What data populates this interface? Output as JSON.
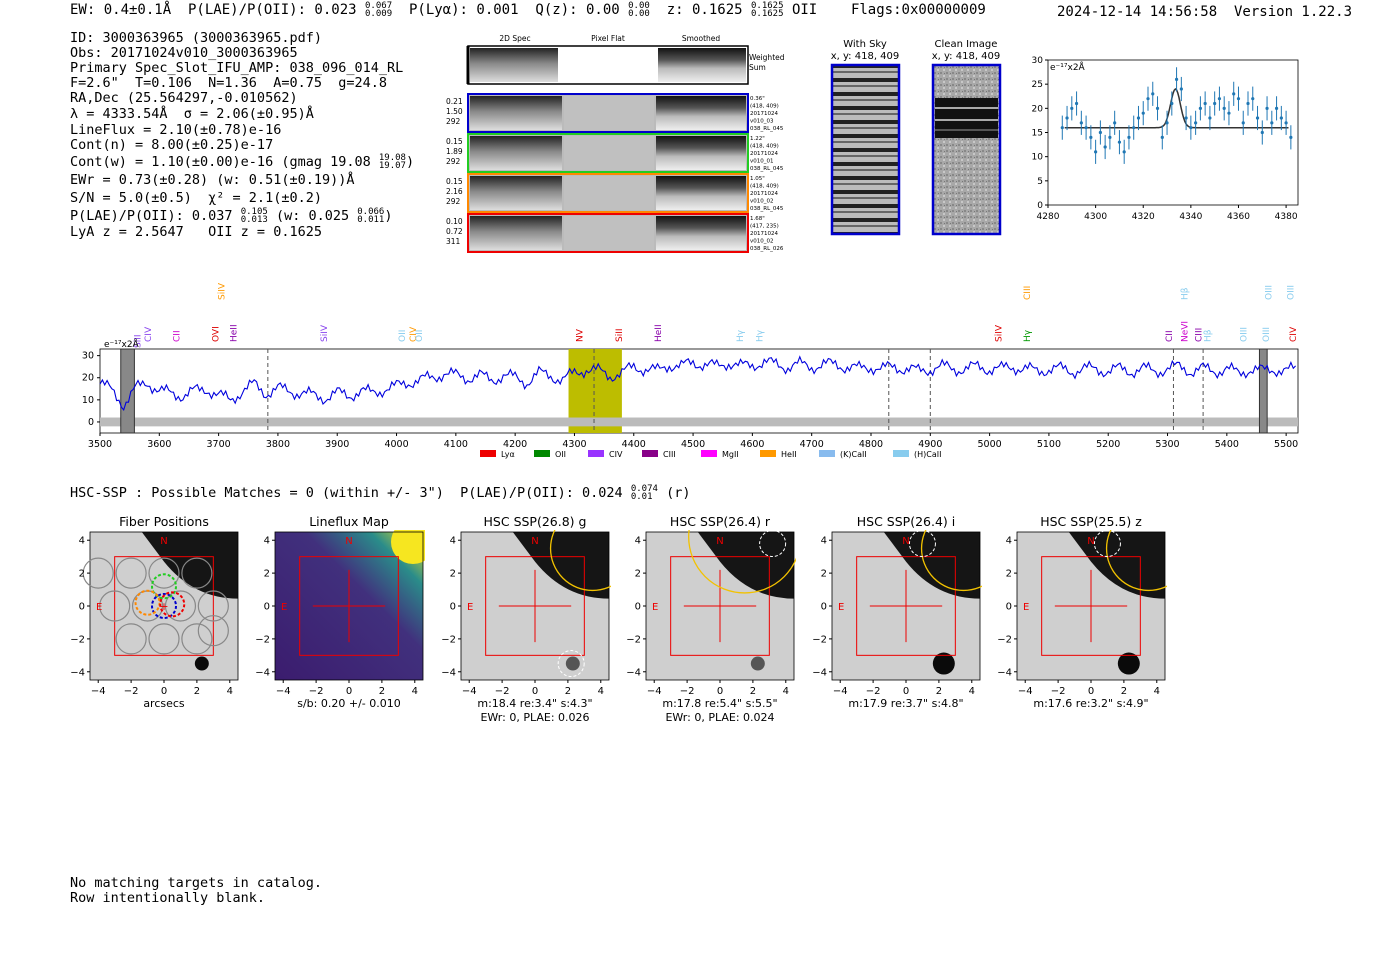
{
  "header": {
    "topline": "EW: 0.4±0.1Å  P(LAE)/P(OII): 0.023",
    "topline_sup": [
      "0.067",
      "0.009"
    ],
    "plya": "P(Lyα): 0.001",
    "qz": "Q(z): 0.00",
    "qz_sup": [
      "0.00",
      "0.00"
    ],
    "z": "z: 0.1625",
    "z_sup": [
      "0.1625",
      "0.1625"
    ],
    "z_tail": "OII    Flags:0x00000009",
    "stamp": "2024-12-14 14:56:58  Version 1.22.3"
  },
  "info": {
    "lines": [
      "ID: 3000363965 (3000363965.pdf)",
      "Obs: 20171024v010_3000363965",
      "Primary Spec_Slot_IFU_AMP: 038_096_014_RL",
      "F=2.6\"  T=0.106  N=1.36  A=0.75  g=24.8",
      "RA,Dec (25.564297,-0.010562)",
      "λ = 4333.54Å  σ = 2.06(±0.95)Å",
      "LineFlux = 2.10(±0.78)e-16",
      "Cont(n) = 8.00(±0.25)e-17"
    ],
    "contw": "Cont(w) = 1.10(±0.00)e-16 (gmag 19.08",
    "contw_sup": [
      "19.08",
      "19.07"
    ],
    "ewr": "EWr = 0.73(±0.28) (w: 0.51(±0.19))Å",
    "sn": "S/N = 5.0(±0.5)  χ² = 2.1(±0.2)",
    "plae": "P(LAE)/P(OII): 0.037",
    "plae_sup": [
      "0.105",
      "0.013"
    ],
    "plae_w": "(w: 0.025",
    "plae_w_sup": [
      "0.066",
      "0.011"
    ],
    "lya_z": "LyA z = 2.5647   OII z = 0.1625"
  },
  "cutouts": {
    "col_headers": [
      "2D Spec",
      "Pixel Flat",
      "Smoothed"
    ],
    "weighted_label": "Weighted Sum",
    "rows": [
      {
        "left": [
          "0.21",
          "1.50",
          "292"
        ],
        "right": [
          "0.36\"",
          "(418, 409)",
          "20171024",
          "v010_03",
          "038_RL_045"
        ],
        "color": "#0000cc"
      },
      {
        "left": [
          "0.15",
          "1.89",
          "292"
        ],
        "right": [
          "1.22\"",
          "(418, 409)",
          "20171024",
          "v010_01",
          "038_RL_045"
        ],
        "color": "#22cc22"
      },
      {
        "left": [
          "0.15",
          "2.16",
          "292"
        ],
        "right": [
          "1.05\"",
          "(418, 409)",
          "20171024",
          "v010_02",
          "038_RL_045"
        ],
        "color": "#ff8800"
      },
      {
        "left": [
          "0.10",
          "0.72",
          "311"
        ],
        "right": [
          "1.68\"",
          "(417, 235)",
          "20171024",
          "v010_02",
          "038_RL_026"
        ],
        "color": "#ee0000"
      }
    ],
    "sky_title": "With Sky",
    "sky_sub": "x, y: 418, 409",
    "clean_title": "Clean Image",
    "clean_sub": "x, y: 418, 409"
  },
  "line_labels": [
    {
      "name": "CIV",
      "x": 1549,
      "color": "#8844ee",
      "row": 0
    },
    {
      "name": "SiII",
      "x": 1527,
      "color": "#8844ee",
      "row": 1
    },
    {
      "name": "CII",
      "x": 1608,
      "color": "#cc00cc",
      "row": 0
    },
    {
      "name": "SiIV",
      "x": 1700,
      "color": "#ff9900",
      "row": 2
    },
    {
      "name": "OVI",
      "x": 1688,
      "color": "#dd0000",
      "row": 0
    },
    {
      "name": "HeII",
      "x": 1725,
      "color": "#8800aa",
      "row": 0
    },
    {
      "name": "SiIV",
      "x": 1912,
      "color": "#8844ee",
      "row": 0
    },
    {
      "name": "OII",
      "x": 2073,
      "color": "#88ccee",
      "row": 0
    },
    {
      "name": "CIV",
      "x": 2095,
      "color": "#ff9900",
      "row": 0
    },
    {
      "name": "OII",
      "x": 2108,
      "color": "#88ccee",
      "row": 0
    },
    {
      "name": "NV",
      "x": 2439,
      "color": "#dd0000",
      "row": 0
    },
    {
      "name": "SiII",
      "x": 2520,
      "color": "#dd0000",
      "row": 0
    },
    {
      "name": "HeII",
      "x": 2600,
      "color": "#8800aa",
      "row": 0
    },
    {
      "name": "Hγ",
      "x": 2770,
      "color": "#88ccee",
      "row": 0
    },
    {
      "name": "Hγ",
      "x": 2810,
      "color": "#88ccee",
      "row": 0
    },
    {
      "name": "SiIV",
      "x": 3302,
      "color": "#dd0000",
      "row": 0
    },
    {
      "name": "Hγ",
      "x": 3361,
      "color": "#009900",
      "row": 0
    },
    {
      "name": "CIII",
      "x": 3361,
      "color": "#ff9900",
      "row": 2
    },
    {
      "name": "CII",
      "x": 3654,
      "color": "#8800aa",
      "row": 0
    },
    {
      "name": "NeVI",
      "x": 3686,
      "color": "#cc00cc",
      "row": 0
    },
    {
      "name": "Hβ",
      "x": 3686,
      "color": "#88ccee",
      "row": 2
    },
    {
      "name": "CIII",
      "x": 3715,
      "color": "#8800aa",
      "row": 0
    },
    {
      "name": "Hβ",
      "x": 3733,
      "color": "#88ccee",
      "row": 0
    },
    {
      "name": "OIII",
      "x": 3808,
      "color": "#88ccee",
      "row": 0
    },
    {
      "name": "OIII",
      "x": 3854,
      "color": "#88ccee",
      "row": 0
    },
    {
      "name": "OIII",
      "x": 3859,
      "color": "#88ccee",
      "row": 2
    },
    {
      "name": "OIII",
      "x": 3905,
      "color": "#88ccee",
      "row": 2
    },
    {
      "name": "CIV",
      "x": 3910,
      "color": "#dd0000",
      "row": 0
    }
  ],
  "legend": [
    {
      "name": "Lyα",
      "color": "#ee0000"
    },
    {
      "name": "OII",
      "color": "#008800"
    },
    {
      "name": "CIV",
      "color": "#9933ff"
    },
    {
      "name": "CIII",
      "color": "#880088"
    },
    {
      "name": "MgII",
      "color": "#ff00ff"
    },
    {
      "name": "HeII",
      "color": "#ff9900"
    },
    {
      "name": "(K)CaII",
      "color": "#88bbee"
    },
    {
      "name": "(H)CaII",
      "color": "#88ccee"
    }
  ],
  "hsc": {
    "header": "HSC-SSP : Possible Matches = 0 (within +/- 3\")  P(LAE)/P(OII): 0.024",
    "header_sup": [
      "0.074",
      "0.01"
    ],
    "header_tail": "(r)",
    "panels": [
      {
        "title": "Fiber Positions",
        "cap1": "arcsecs",
        "cap2": ""
      },
      {
        "title": "Lineflux Map",
        "cap1": "s/b: 0.20 +/- 0.010",
        "cap2": ""
      },
      {
        "title": "HSC SSP(26.8) g",
        "cap1": "m:18.4  re:3.4\"  s:4.3\"",
        "cap2": "EWr: 0, PLAE: 0.026"
      },
      {
        "title": "HSC SSP(26.4) r",
        "cap1": "m:17.8  re:5.4\"  s:5.5\"",
        "cap2": "EWr: 0, PLAE: 0.024"
      },
      {
        "title": "HSC SSP(26.4) i",
        "cap1": "m:17.9  re:3.7\"  s:4.8\"",
        "cap2": ""
      },
      {
        "title": "HSC SSP(25.5) z",
        "cap1": "m:17.6  re:3.2\"  s:4.9\"",
        "cap2": ""
      }
    ],
    "north": "N",
    "east": "E",
    "ticks": [
      "−4",
      "−2",
      "0",
      "2",
      "4"
    ]
  },
  "footer": [
    "No matching targets in catalog.",
    "Row intentionally blank."
  ],
  "chart_data": [
    {
      "type": "scatter",
      "title": "",
      "xlabel": "",
      "ylabel": "e⁻¹⁷x2Å",
      "xlim": [
        4280,
        4385
      ],
      "ylim": [
        0,
        30
      ],
      "xticks": [
        4280,
        4300,
        4320,
        4340,
        4360,
        4380
      ],
      "yticks": [
        0,
        5,
        10,
        15,
        20,
        25,
        30
      ],
      "points": {
        "x": [
          4286,
          4288,
          4290,
          4292,
          4294,
          4296,
          4298,
          4300,
          4302,
          4304,
          4306,
          4308,
          4310,
          4312,
          4314,
          4316,
          4318,
          4320,
          4322,
          4324,
          4326,
          4328,
          4330,
          4332,
          4334,
          4336,
          4338,
          4340,
          4342,
          4344,
          4346,
          4348,
          4350,
          4352,
          4354,
          4356,
          4358,
          4360,
          4362,
          4364,
          4366,
          4368,
          4370,
          4372,
          4374,
          4376,
          4378,
          4380,
          4382
        ],
        "y": [
          16,
          18,
          20,
          21,
          17,
          16,
          14,
          11,
          15,
          12,
          14,
          17,
          13,
          11,
          14,
          16,
          18,
          19,
          22,
          23,
          20,
          14,
          17,
          21,
          26,
          24,
          18,
          16,
          17,
          20,
          21,
          18,
          21,
          22,
          20,
          19,
          23,
          22,
          17,
          21,
          22,
          18,
          15,
          20,
          17,
          20,
          18,
          17,
          14
        ]
      },
      "fit": {
        "continuum": 16.0,
        "center": 4333.54,
        "sigma": 2.06,
        "amplitude": 8.0
      }
    },
    {
      "type": "line",
      "title": "",
      "xlabel": "",
      "ylabel": "e⁻¹⁷x2Å",
      "xlim": [
        3500,
        5520
      ],
      "ylim": [
        -5,
        33
      ],
      "xticks": [
        3500,
        3600,
        3700,
        3800,
        3900,
        4000,
        4100,
        4200,
        4300,
        4400,
        4500,
        4600,
        4700,
        4800,
        4900,
        5000,
        5100,
        5200,
        5300,
        5400,
        5500
      ],
      "yticks": [
        0,
        10,
        20,
        30
      ],
      "series": [
        {
          "name": "",
          "x": [
            3500,
            3520,
            3540,
            3560,
            3580,
            3600,
            3620,
            3640,
            3660,
            3680,
            3700,
            3720,
            3740,
            3760,
            3780,
            3800,
            3820,
            3840,
            3860,
            3880,
            3900,
            3920,
            3940,
            3960,
            3980,
            4000,
            4020,
            4040,
            4060,
            4080,
            4100,
            4120,
            4140,
            4160,
            4180,
            4200,
            4220,
            4240,
            4260,
            4280,
            4300,
            4320,
            4340,
            4360,
            4380,
            4400,
            4420,
            4440,
            4460,
            4480,
            4500,
            4520,
            4540,
            4560,
            4580,
            4600,
            4620,
            4640,
            4660,
            4680,
            4700,
            4720,
            4740,
            4760,
            4780,
            4800,
            4820,
            4840,
            4860,
            4880,
            4900,
            4920,
            4940,
            4960,
            4980,
            5000,
            5020,
            5040,
            5060,
            5080,
            5100,
            5120,
            5140,
            5160,
            5180,
            5200,
            5220,
            5240,
            5260,
            5280,
            5300,
            5320,
            5340,
            5360,
            5380,
            5400,
            5420,
            5440,
            5460,
            5480,
            5500,
            5520
          ],
          "y": [
            18,
            14,
            8,
            15,
            18,
            14,
            13,
            12,
            14,
            15,
            12,
            10,
            14,
            17,
            13,
            15,
            14,
            13,
            12,
            11,
            13,
            12,
            14,
            13,
            15,
            16,
            18,
            19,
            20,
            22,
            21,
            20,
            21,
            19,
            21,
            20,
            18,
            22,
            21,
            19,
            22,
            24,
            23,
            21,
            22,
            25,
            24,
            23,
            26,
            25,
            27,
            26,
            25,
            27,
            25,
            26,
            27,
            26,
            25,
            26,
            25,
            26,
            26,
            25,
            24,
            25,
            24,
            25,
            24,
            23,
            24,
            25,
            24,
            24,
            25,
            24,
            24,
            25,
            24,
            23,
            24,
            24,
            23,
            24,
            24,
            23,
            24,
            23,
            24,
            23,
            24,
            25,
            23,
            24,
            23,
            24,
            22,
            24,
            23,
            24,
            23,
            24
          ]
        }
      ],
      "noise_level": 2,
      "highlight_band": [
        4290,
        4380
      ],
      "dashed_lines": [
        3783,
        4333,
        4830,
        4900,
        5310,
        5360
      ],
      "masked_bands": [
        [
          3535,
          3558
        ],
        [
          5455,
          5468
        ]
      ]
    }
  ]
}
